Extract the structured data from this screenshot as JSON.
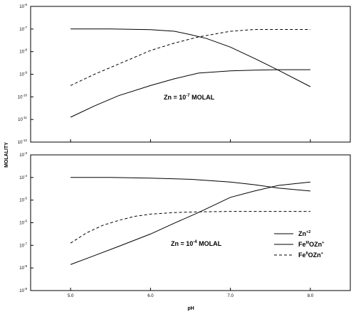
{
  "chart_data": [
    {
      "type": "line",
      "xlabel": "",
      "ylabel": "",
      "xlim": [
        4.5,
        8.5
      ],
      "y_log": true,
      "ylim_exponent": [
        -12,
        -6
      ],
      "x_ticks": [
        "",
        "",
        "",
        ""
      ],
      "y_ticks": [
        {
          "base": "10",
          "exp": "-6"
        },
        {
          "base": "10",
          "exp": "-7"
        },
        {
          "base": "10",
          "exp": "-8"
        },
        {
          "base": "10",
          "exp": "-9"
        },
        {
          "base": "10",
          "exp": "-10"
        },
        {
          "base": "10",
          "exp": "-11"
        },
        {
          "base": "10",
          "exp": "-12"
        }
      ],
      "annotation": {
        "prefix": "Zn = 10",
        "exp": "-7",
        "suffix": " MOLAL"
      },
      "series": [
        {
          "style": "solid",
          "x": [
            5.0,
            5.5,
            6.0,
            6.3,
            6.5,
            6.7,
            7.0,
            7.3,
            7.6,
            8.0
          ],
          "y_exp": [
            -7.0,
            -7.0,
            -7.03,
            -7.1,
            -7.25,
            -7.42,
            -7.8,
            -8.3,
            -8.82,
            -9.55
          ]
        },
        {
          "style": "solid",
          "x": [
            5.0,
            5.3,
            5.6,
            6.0,
            6.3,
            6.6,
            7.0,
            7.3,
            7.6,
            8.0
          ],
          "y_exp": [
            -10.9,
            -10.4,
            -9.95,
            -9.5,
            -9.2,
            -8.95,
            -8.85,
            -8.82,
            -8.8,
            -8.8
          ]
        },
        {
          "style": "dashed",
          "x": [
            5.0,
            5.3,
            5.6,
            6.0,
            6.3,
            6.6,
            7.0,
            7.3,
            7.6,
            8.0
          ],
          "y_exp": [
            -9.5,
            -9.0,
            -8.55,
            -7.95,
            -7.62,
            -7.35,
            -7.1,
            -7.02,
            -7.02,
            -7.02
          ]
        }
      ]
    },
    {
      "type": "line",
      "xlabel": "pH",
      "ylabel": "MOLALITY",
      "xlim": [
        4.5,
        8.5
      ],
      "y_log": true,
      "ylim_exponent": [
        -9,
        -3
      ],
      "x_ticks": [
        "5.0",
        "6.0",
        "7.0",
        "8.0"
      ],
      "y_ticks": [
        {
          "base": "10",
          "exp": "-3"
        },
        {
          "base": "10",
          "exp": "-4"
        },
        {
          "base": "10",
          "exp": "-5"
        },
        {
          "base": "10",
          "exp": "-6"
        },
        {
          "base": "10",
          "exp": "-7"
        },
        {
          "base": "10",
          "exp": "-8"
        },
        {
          "base": "10",
          "exp": "-9"
        }
      ],
      "annotation": {
        "prefix": "Zn = 10",
        "exp": "-4",
        "suffix": " MOLAL"
      },
      "legend": {
        "placement": "bottom-right",
        "entries": [
          {
            "style": "solid",
            "text": "Zn",
            "sup": "+2"
          },
          {
            "style": "solid",
            "text": "Fe",
            "sup1": "III",
            "mid": "OZn",
            "sup2": "+"
          },
          {
            "style": "dashed",
            "text": "Fe",
            "sup1": "II",
            "mid": "OZn",
            "sup2": "+"
          }
        ]
      },
      "series": [
        {
          "style": "solid",
          "x": [
            5.0,
            5.5,
            6.0,
            6.5,
            7.0,
            7.3,
            7.6,
            8.0
          ],
          "y_exp": [
            -4.0,
            -4.0,
            -4.03,
            -4.08,
            -4.2,
            -4.32,
            -4.47,
            -4.6
          ]
        },
        {
          "style": "solid",
          "x": [
            5.0,
            5.3,
            5.6,
            6.0,
            6.3,
            6.6,
            7.0,
            7.3,
            7.6,
            8.0
          ],
          "y_exp": [
            -7.85,
            -7.45,
            -7.05,
            -6.5,
            -6.02,
            -5.55,
            -4.88,
            -4.6,
            -4.35,
            -4.2
          ]
        },
        {
          "style": "dashed",
          "x": [
            5.0,
            5.2,
            5.4,
            5.6,
            5.8,
            6.0,
            6.3,
            6.6,
            7.0,
            7.5,
            8.0
          ],
          "y_exp": [
            -6.9,
            -6.45,
            -6.12,
            -5.9,
            -5.72,
            -5.62,
            -5.55,
            -5.52,
            -5.5,
            -5.5,
            -5.5
          ]
        }
      ]
    }
  ]
}
